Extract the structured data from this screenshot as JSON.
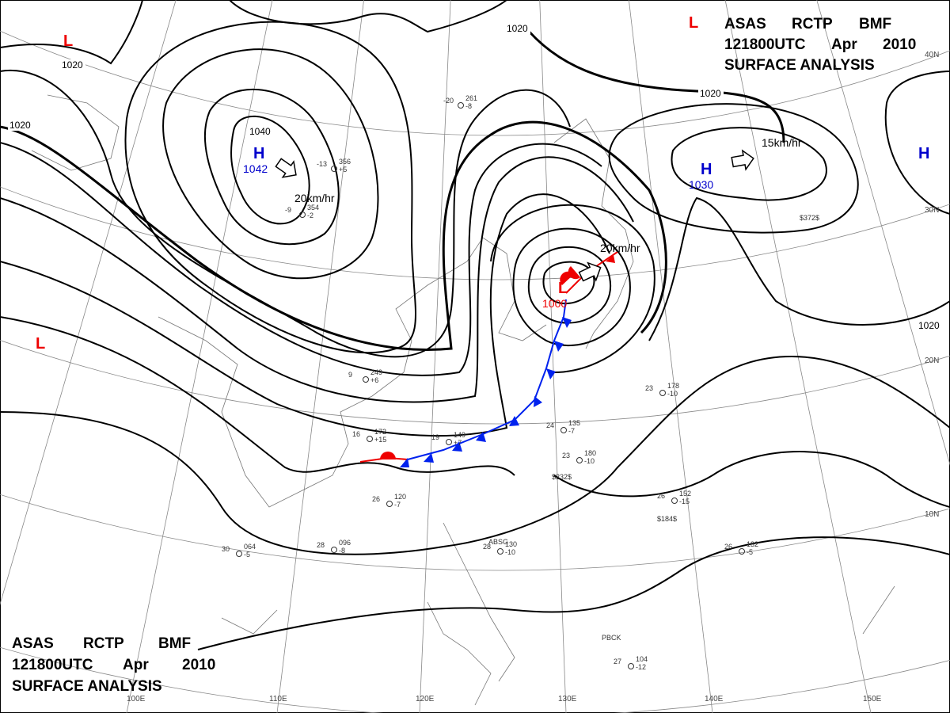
{
  "header": {
    "agency": "ASAS",
    "station": "RCTP",
    "code": "BMF",
    "time": "121800UTC",
    "month": "Apr",
    "year": "2010",
    "product": "SURFACE ANALYSIS"
  },
  "systems": [
    {
      "symbol": "H",
      "pressure": "1042"
    },
    {
      "symbol": "H",
      "pressure": "1030"
    },
    {
      "symbol": "L",
      "pressure": "1000"
    },
    {
      "symbol": "L"
    },
    {
      "symbol": "L"
    },
    {
      "symbol": "L"
    },
    {
      "symbol": "H"
    }
  ],
  "motions": [
    "20km/hr",
    "15km/hr",
    "20km/hr"
  ],
  "isobar_labels": [
    "1020",
    "1020",
    "1020",
    "1040",
    "1020",
    "1020"
  ],
  "longitudes": [
    "100E",
    "110E",
    "120E",
    "130E",
    "140E",
    "150E"
  ],
  "latitudes": [
    "40N",
    "30N",
    "20N",
    "10N"
  ],
  "stations": [
    {
      "temp": "16",
      "pressure": "172",
      "tendency": "+15"
    },
    {
      "temp": "19",
      "pressure": "149",
      "tendency": "+7"
    },
    {
      "temp": "23",
      "pressure": "180",
      "tendency": "-10"
    },
    {
      "temp": "26",
      "pressure": "152",
      "tendency": "-15"
    },
    {
      "temp": "28",
      "pressure": "130",
      "tendency": "-10"
    },
    {
      "temp": "26",
      "pressure": "132",
      "tendency": "-5"
    },
    {
      "temp": "23",
      "pressure": "178",
      "tendency": "-10"
    },
    {
      "temp": "24",
      "pressure": "135",
      "tendency": "-7"
    },
    {
      "temp": "-13",
      "pressure": "356",
      "tendency": "+5"
    },
    {
      "temp": "-9",
      "pressure": "354",
      "tendency": "-2"
    },
    {
      "temp": "-20",
      "pressure": "261",
      "tendency": "-8"
    },
    {
      "temp": "9",
      "pressure": "249",
      "tendency": "+6"
    },
    {
      "temp": "26",
      "pressure": "120",
      "tendency": "-7"
    },
    {
      "temp": "28",
      "pressure": "096",
      "tendency": "-8"
    },
    {
      "temp": "30",
      "pressure": "064",
      "tendency": "-5"
    },
    {
      "temp": "27",
      "pressure": "104",
      "tendency": "-12"
    }
  ],
  "codes": [
    "$232$",
    "$184$",
    "$372$",
    "PBCK",
    "ABSG"
  ]
}
